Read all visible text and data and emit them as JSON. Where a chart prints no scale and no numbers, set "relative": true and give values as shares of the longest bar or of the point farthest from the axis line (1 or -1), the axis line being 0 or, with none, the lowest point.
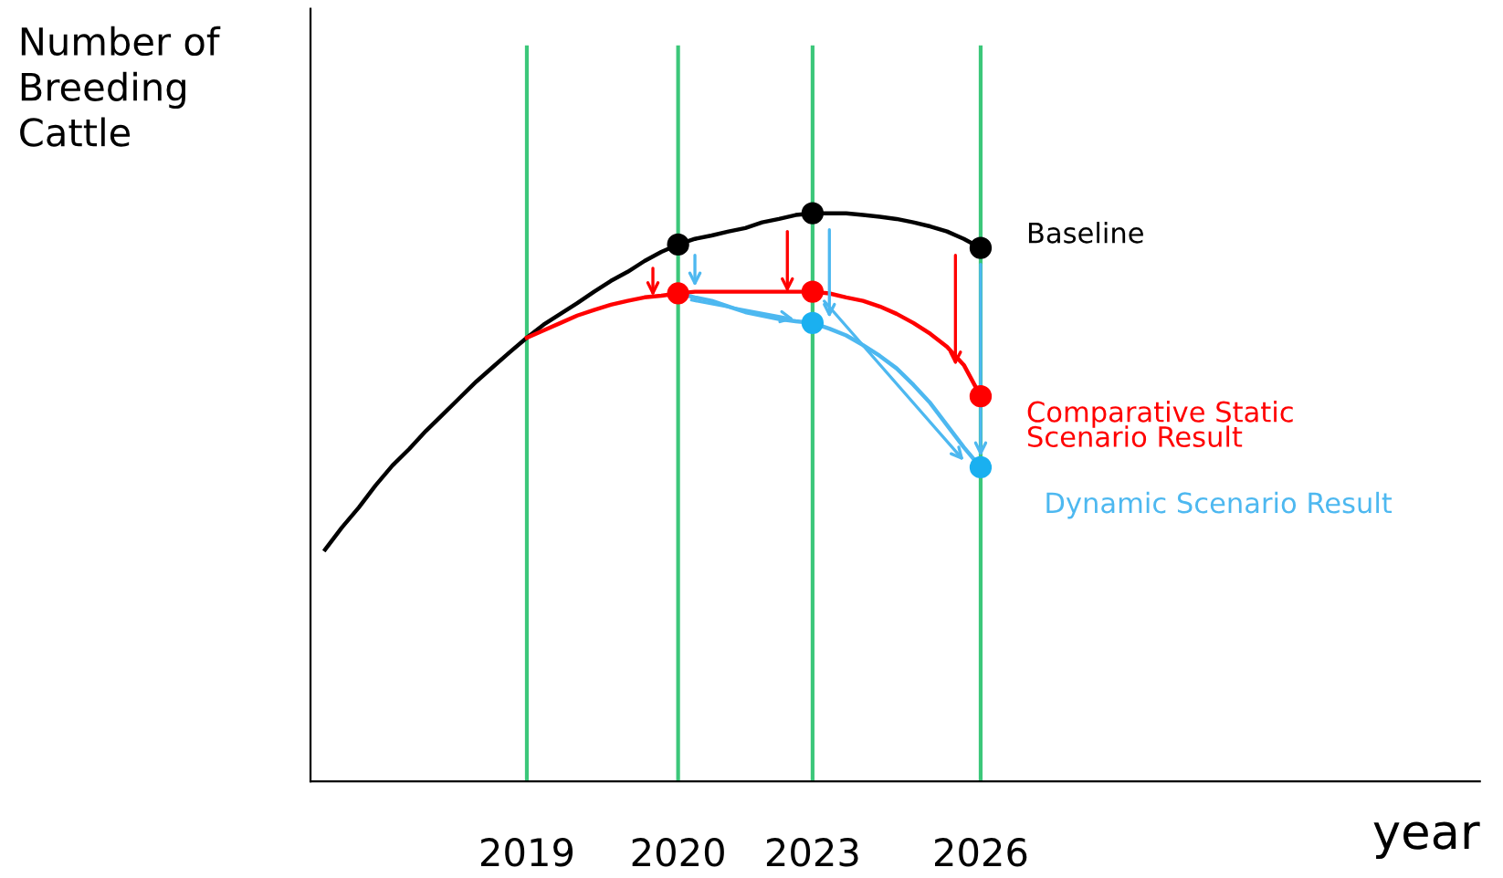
{
  "chart_data": {
    "type": "line",
    "relative": true,
    "ylabel": "Number of\nBreeding\nCattle",
    "annotations": [
      "year"
    ],
    "categories": [
      null,
      null,
      null,
      null,
      null,
      null,
      null,
      null,
      null,
      null,
      null,
      null,
      "2019",
      null,
      null,
      null,
      null,
      null,
      null,
      null,
      null,
      "2020",
      null,
      null,
      null,
      null,
      null,
      null,
      null,
      "2023",
      null,
      null,
      null,
      null,
      null,
      null,
      null,
      null,
      null,
      "2026"
    ],
    "series": [
      {
        "name": "Baseline",
        "color": "#000000",
        "values": [
          0.408,
          0.447,
          0.482,
          0.521,
          0.556,
          0.585,
          0.617,
          0.646,
          0.675,
          0.704,
          0.73,
          0.756,
          0.781,
          0.804,
          0.823,
          0.842,
          0.862,
          0.881,
          0.897,
          0.916,
          0.932,
          0.945,
          0.955,
          0.961,
          0.968,
          0.974,
          0.984,
          0.99,
          0.997,
          1.0,
          1.0,
          1.0,
          0.997,
          0.994,
          0.99,
          0.984,
          0.977,
          0.968,
          0.955,
          0.939
        ]
      },
      {
        "name": "Comparative Static\nScenario Result",
        "color": "#ff0000",
        "values": [
          null,
          null,
          null,
          null,
          null,
          null,
          null,
          null,
          null,
          null,
          null,
          null,
          0.781,
          0.794,
          0.807,
          0.82,
          0.83,
          0.839,
          0.846,
          0.852,
          0.855,
          0.859,
          0.862,
          0.862,
          0.862,
          0.862,
          0.862,
          0.862,
          0.862,
          0.862,
          0.859,
          0.852,
          0.846,
          0.836,
          0.823,
          0.807,
          0.788,
          0.765,
          0.733,
          0.678
        ]
      },
      {
        "name": "Dynamic Scenario Result",
        "color": "#4db8f0",
        "values": [
          null,
          null,
          null,
          null,
          null,
          null,
          null,
          null,
          null,
          null,
          null,
          null,
          null,
          null,
          null,
          null,
          null,
          null,
          null,
          null,
          null,
          0.859,
          0.852,
          0.846,
          0.836,
          0.826,
          0.82,
          0.814,
          0.81,
          0.807,
          0.797,
          0.785,
          0.768,
          0.749,
          0.727,
          0.698,
          0.666,
          0.627,
          0.588,
          0.553
        ]
      },
      {
        "type": "scatter",
        "color": "#000000",
        "values": [
          null,
          null,
          null,
          null,
          null,
          null,
          null,
          null,
          null,
          null,
          null,
          null,
          null,
          null,
          null,
          null,
          null,
          null,
          null,
          null,
          null,
          0.945,
          null,
          null,
          null,
          null,
          null,
          null,
          null,
          1.0,
          null,
          null,
          null,
          null,
          null,
          null,
          null,
          null,
          null,
          0.939
        ]
      },
      {
        "type": "scatter",
        "color": "#ff0000",
        "values": [
          null,
          null,
          null,
          null,
          null,
          null,
          null,
          null,
          null,
          null,
          null,
          null,
          null,
          null,
          null,
          null,
          null,
          null,
          null,
          null,
          null,
          0.859,
          null,
          null,
          null,
          null,
          null,
          null,
          null,
          0.862,
          null,
          null,
          null,
          null,
          null,
          null,
          null,
          null,
          null,
          0.678
        ]
      },
      {
        "type": "scatter",
        "color": "#1ab0f0",
        "values": [
          null,
          null,
          null,
          null,
          null,
          null,
          null,
          null,
          null,
          null,
          null,
          null,
          null,
          null,
          null,
          null,
          null,
          null,
          null,
          null,
          null,
          null,
          null,
          null,
          null,
          null,
          null,
          null,
          null,
          0.807,
          null,
          null,
          null,
          null,
          null,
          null,
          null,
          null,
          null,
          0.553
        ]
      }
    ],
    "ref_lines": [
      {
        "axis": "x",
        "value": "2019",
        "color": "#3cc77a"
      },
      {
        "axis": "x",
        "value": "2020",
        "color": "#3cc77a"
      },
      {
        "axis": "x",
        "value": "2023",
        "color": "#3cc77a"
      },
      {
        "axis": "x",
        "value": "2026",
        "color": "#3cc77a"
      }
    ],
    "grid": false,
    "legend": false
  }
}
